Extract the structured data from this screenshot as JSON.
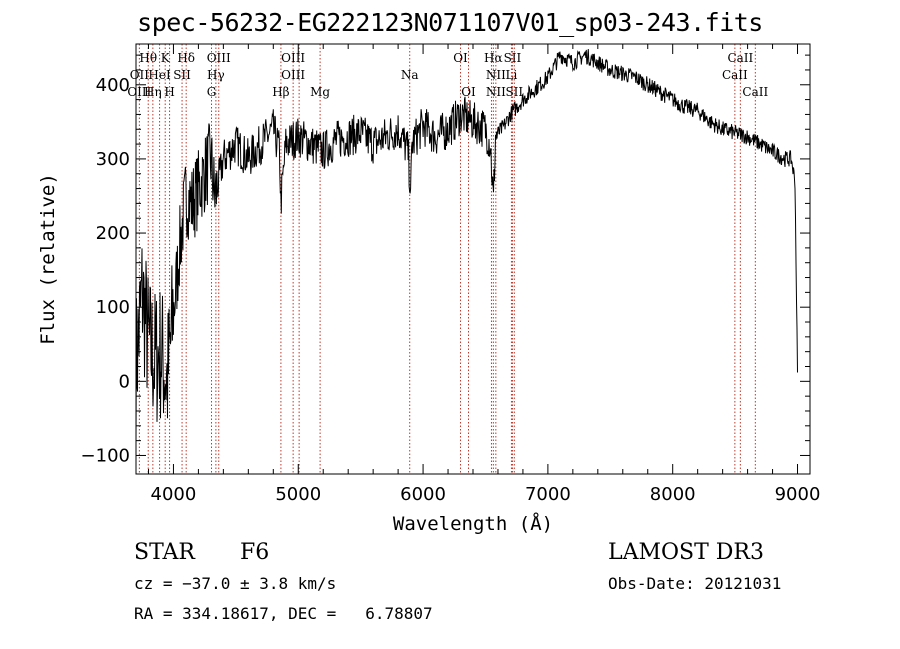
{
  "chart_data": {
    "type": "line",
    "title": "spec-56232-EG222123N071107V01_sp03-243.fits",
    "xlabel": "Wavelength (Å)",
    "ylabel": "Flux (relative)",
    "xlim": [
      3700,
      9100
    ],
    "ylim": [
      -125,
      455
    ],
    "xticks": [
      "4000",
      "5000",
      "6000",
      "7000",
      "8000",
      "9000"
    ],
    "xtick_values": [
      4000,
      5000,
      6000,
      7000,
      8000,
      9000
    ],
    "yticks": [
      "−100",
      "0",
      "100",
      "200",
      "300",
      "400"
    ],
    "ytick_values": [
      -100,
      0,
      100,
      200,
      300,
      400
    ],
    "series": [
      {
        "x": [
          3700,
          3750,
          3800,
          3850,
          3900,
          3950,
          4000,
          4050,
          4100,
          4150,
          4200,
          4250,
          4300,
          4330,
          4350,
          4400,
          4450,
          4500,
          4600,
          4700,
          4800,
          4850,
          4860,
          4900,
          5000,
          5100,
          5200,
          5300,
          5400,
          5500,
          5600,
          5700,
          5800,
          5880,
          5895,
          5900,
          5910,
          6000,
          6100,
          6200,
          6300,
          6400,
          6500,
          6540,
          6563,
          6580,
          6650,
          6700,
          6800,
          6900,
          7000,
          7100,
          7200,
          7300,
          7400,
          7500,
          7600,
          7700,
          7800,
          7900,
          8000,
          8100,
          8200,
          8300,
          8400,
          8500,
          8600,
          8700,
          8800,
          8900,
          8950,
          8980,
          9000
        ],
        "y": [
          20,
          120,
          50,
          30,
          40,
          0,
          90,
          180,
          250,
          240,
          260,
          280,
          300,
          250,
          260,
          300,
          310,
          320,
          300,
          320,
          340,
          310,
          240,
          320,
          330,
          320,
          310,
          325,
          330,
          335,
          320,
          330,
          340,
          310,
          270,
          240,
          320,
          345,
          330,
          340,
          360,
          350,
          340,
          320,
          240,
          330,
          345,
          360,
          380,
          395,
          410,
          440,
          430,
          440,
          430,
          420,
          415,
          410,
          400,
          390,
          380,
          370,
          365,
          350,
          340,
          335,
          330,
          320,
          310,
          300,
          300,
          270,
          10
        ]
      }
    ],
    "lines": [
      {
        "name": "Hθ",
        "x": 3798,
        "row": 0
      },
      {
        "name": "OII",
        "x": 3727,
        "row": 1
      },
      {
        "name": "OIII",
        "x": 3727,
        "row": 2
      },
      {
        "name": "Hη",
        "x": 3835,
        "row": 2
      },
      {
        "name": "K",
        "x": 3934,
        "row": 0
      },
      {
        "name": "HeI",
        "x": 3889,
        "row": 1
      },
      {
        "name": "H",
        "x": 3969,
        "row": 2
      },
      {
        "name": "Hδ",
        "x": 4102,
        "row": 0
      },
      {
        "name": "SII",
        "x": 4069,
        "row": 1
      },
      {
        "name": "OIII",
        "x": 4363,
        "row": 0
      },
      {
        "name": "Hγ",
        "x": 4340,
        "row": 1
      },
      {
        "name": "G",
        "x": 4305,
        "row": 2
      },
      {
        "name": "Hβ",
        "x": 4861,
        "row": 2
      },
      {
        "name": "OIII",
        "x": 4959,
        "row": 0
      },
      {
        "name": "OIII",
        "x": 4959,
        "row": 1
      },
      {
        "name": "Mg",
        "x": 5175,
        "row": 2
      },
      {
        "name": "Na",
        "x": 5893,
        "row": 1
      },
      {
        "name": "OI",
        "x": 6300,
        "row": 0
      },
      {
        "name": "OI",
        "x": 6364,
        "row": 2
      },
      {
        "name": "Hα",
        "x": 6563,
        "row": 0
      },
      {
        "name": "NII",
        "x": 6583,
        "row": 1
      },
      {
        "name": "NII",
        "x": 6583,
        "row": 2
      },
      {
        "name": "SII",
        "x": 6716,
        "row": 0
      },
      {
        "name": "Li",
        "x": 6708,
        "row": 1
      },
      {
        "name": "SII",
        "x": 6731,
        "row": 2
      },
      {
        "name": "CaII",
        "x": 8542,
        "row": 0
      },
      {
        "name": "CaII",
        "x": 8498,
        "row": 1
      },
      {
        "name": "CaII",
        "x": 8662,
        "row": 2
      }
    ],
    "line_positions": [
      3727,
      3798,
      3835,
      3889,
      3934,
      3969,
      4069,
      4102,
      4305,
      4340,
      4363,
      4861,
      4959,
      5007,
      5175,
      5893,
      6300,
      6364,
      6548,
      6563,
      6583,
      6708,
      6716,
      6731,
      8498,
      8542,
      8662
    ],
    "line_color": "#c0392b"
  },
  "info": {
    "class": "STAR",
    "subclass": "F6",
    "survey": "LAMOST DR3",
    "cz": "cz = −37.0 ± 3.8 km/s",
    "obs_date": "Obs-Date: 20121031",
    "radec": "RA = 334.18617, DEC =   6.78807"
  }
}
